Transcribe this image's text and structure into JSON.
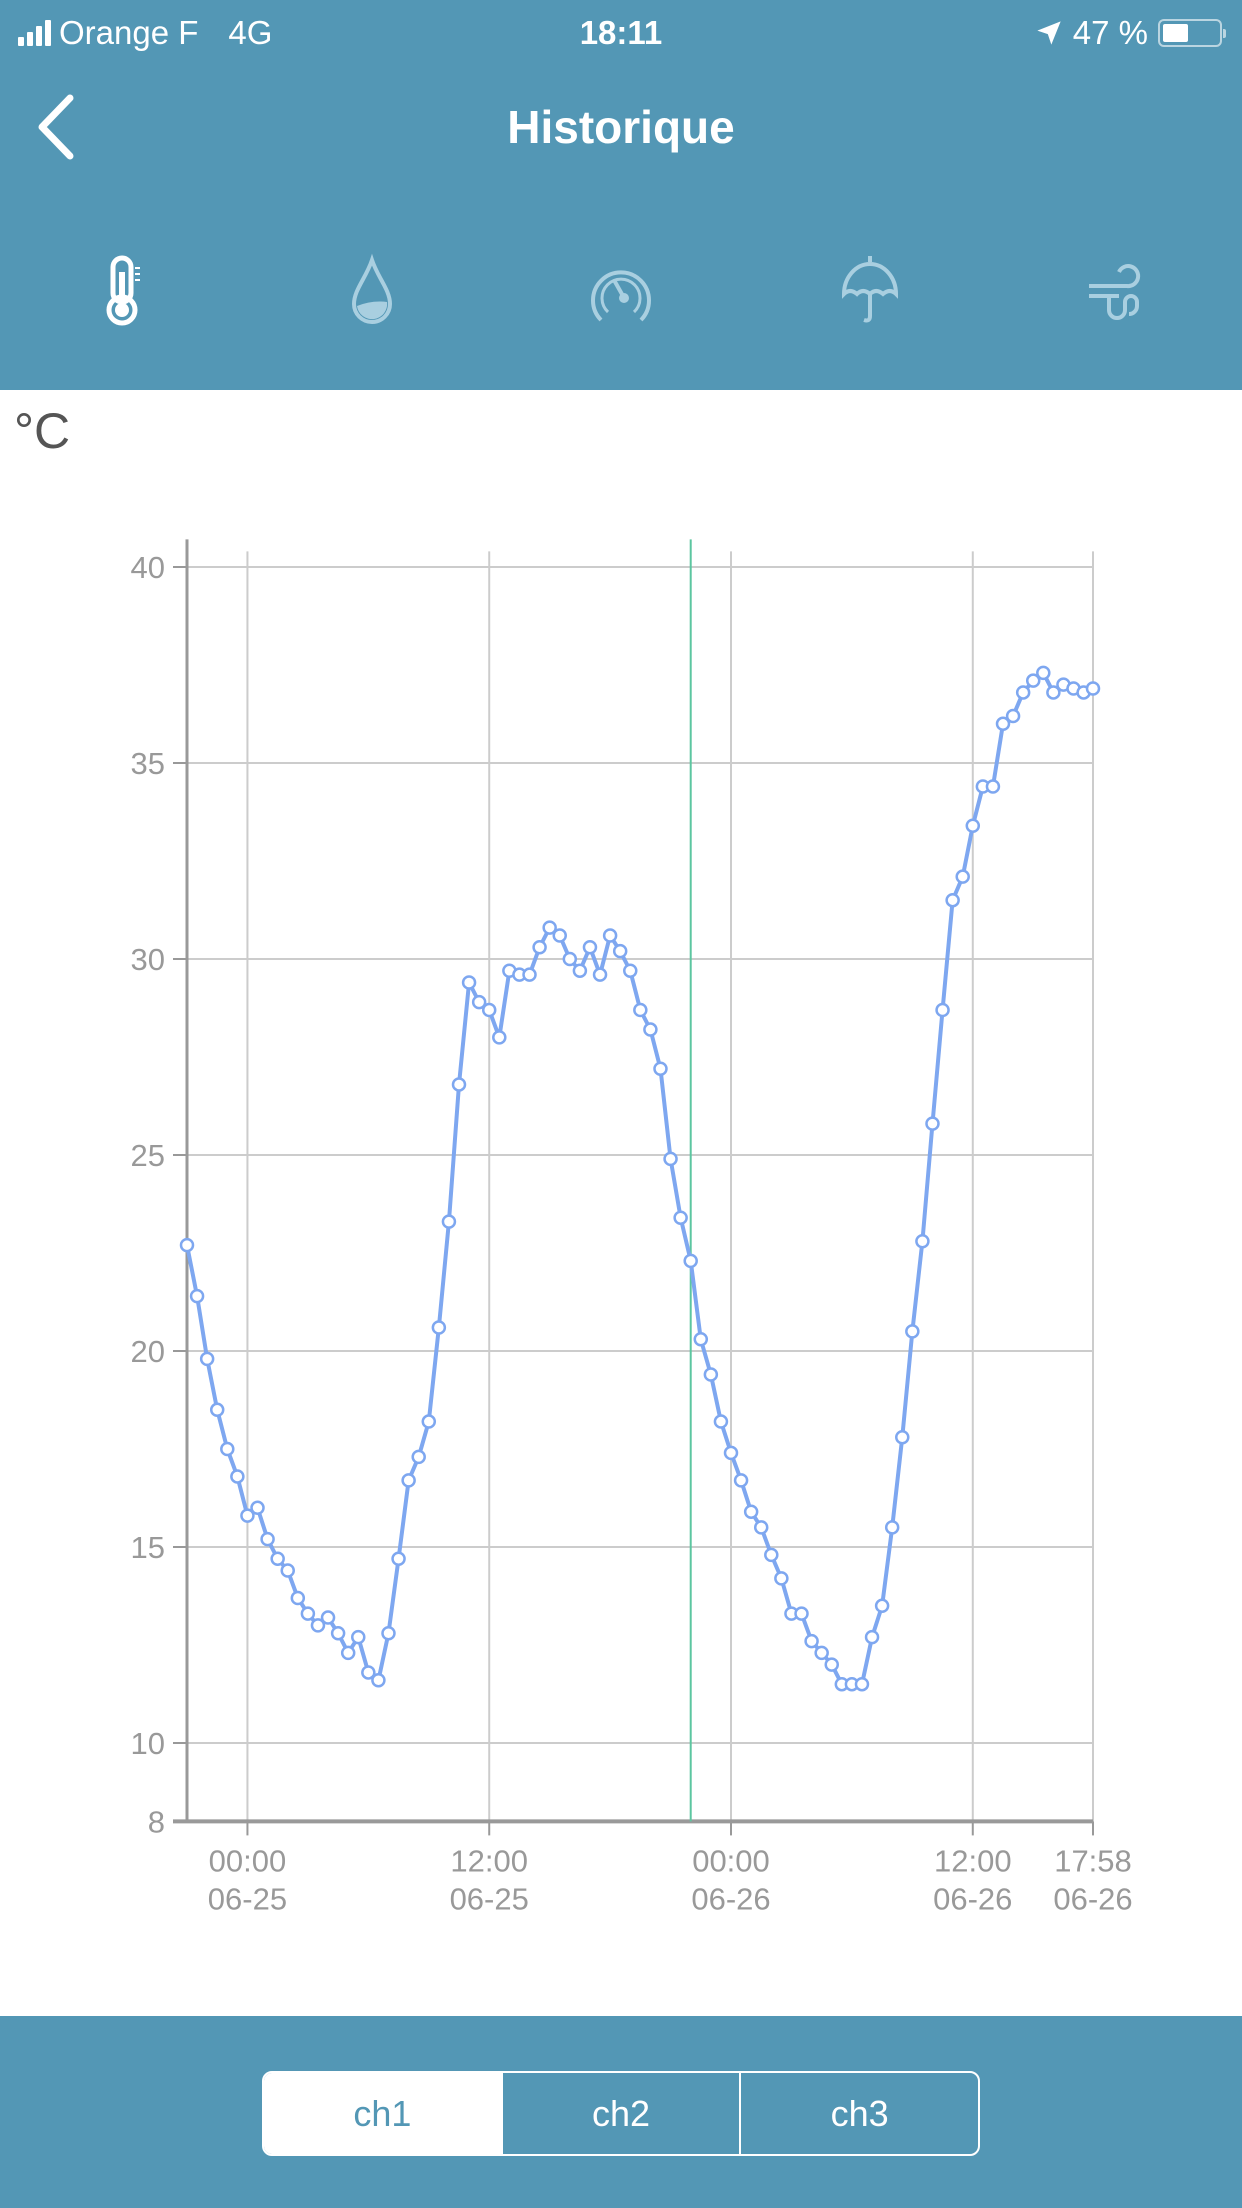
{
  "status_bar": {
    "carrier": "Orange F",
    "network": "4G",
    "time": "18:11",
    "battery": "47 %",
    "battery_level": 0.47
  },
  "header": {
    "title": "Historique"
  },
  "sensor_tabs": [
    {
      "icon": "thermometer-icon",
      "active": true
    },
    {
      "icon": "humidity-drop-icon",
      "active": false
    },
    {
      "icon": "pressure-gauge-icon",
      "active": false
    },
    {
      "icon": "rain-umbrella-icon",
      "active": false
    },
    {
      "icon": "wind-icon",
      "active": false
    }
  ],
  "unit_label": "°C",
  "colors": {
    "header": "#5397b5",
    "line": "#7ea7f0",
    "cursor": "#5cc6a0",
    "grid": "#cccccc",
    "axis": "#999999"
  },
  "chart_data": {
    "type": "line",
    "ylim": [
      8,
      40
    ],
    "y_ticks": [
      "40",
      "35",
      "30",
      "25",
      "20",
      "15",
      "10",
      "8"
    ],
    "x_range": [
      "06-24 21:00",
      "06-26 17:58"
    ],
    "x_ticks": [
      {
        "time": "00:00",
        "date": "06-25"
      },
      {
        "time": "12:00",
        "date": "06-25"
      },
      {
        "time": "00:00",
        "date": "06-26"
      },
      {
        "time": "12:00",
        "date": "06-26"
      },
      {
        "time": "17:58",
        "date": "06-26"
      }
    ],
    "cursor_at": "06-25 22:00",
    "grid": true,
    "points": [
      [
        "06-24 21:00",
        22.7
      ],
      [
        "06-24 21:30",
        21.4
      ],
      [
        "06-24 22:00",
        19.8
      ],
      [
        "06-24 22:30",
        18.5
      ],
      [
        "06-24 23:00",
        17.5
      ],
      [
        "06-24 23:30",
        16.8
      ],
      [
        "06-25 00:00",
        15.8
      ],
      [
        "06-25 00:30",
        16.0
      ],
      [
        "06-25 01:00",
        15.2
      ],
      [
        "06-25 01:30",
        14.7
      ],
      [
        "06-25 02:00",
        14.4
      ],
      [
        "06-25 02:30",
        13.7
      ],
      [
        "06-25 03:00",
        13.3
      ],
      [
        "06-25 03:30",
        13.0
      ],
      [
        "06-25 04:00",
        13.2
      ],
      [
        "06-25 04:30",
        12.8
      ],
      [
        "06-25 05:00",
        12.3
      ],
      [
        "06-25 05:30",
        12.7
      ],
      [
        "06-25 06:00",
        11.8
      ],
      [
        "06-25 06:30",
        11.6
      ],
      [
        "06-25 07:00",
        12.8
      ],
      [
        "06-25 07:30",
        14.7
      ],
      [
        "06-25 08:00",
        16.7
      ],
      [
        "06-25 08:30",
        17.3
      ],
      [
        "06-25 09:00",
        18.2
      ],
      [
        "06-25 09:30",
        20.6
      ],
      [
        "06-25 10:00",
        23.3
      ],
      [
        "06-25 10:30",
        26.8
      ],
      [
        "06-25 11:00",
        29.4
      ],
      [
        "06-25 11:30",
        28.9
      ],
      [
        "06-25 12:00",
        28.7
      ],
      [
        "06-25 12:30",
        28.0
      ],
      [
        "06-25 13:00",
        29.7
      ],
      [
        "06-25 13:30",
        29.6
      ],
      [
        "06-25 14:00",
        29.6
      ],
      [
        "06-25 14:30",
        30.3
      ],
      [
        "06-25 15:00",
        30.8
      ],
      [
        "06-25 15:30",
        30.6
      ],
      [
        "06-25 16:00",
        30.0
      ],
      [
        "06-25 16:30",
        29.7
      ],
      [
        "06-25 17:00",
        30.3
      ],
      [
        "06-25 17:30",
        29.6
      ],
      [
        "06-25 18:00",
        30.6
      ],
      [
        "06-25 18:30",
        30.2
      ],
      [
        "06-25 19:00",
        29.7
      ],
      [
        "06-25 19:30",
        28.7
      ],
      [
        "06-25 20:00",
        28.2
      ],
      [
        "06-25 20:30",
        27.2
      ],
      [
        "06-25 21:00",
        24.9
      ],
      [
        "06-25 21:30",
        23.4
      ],
      [
        "06-25 22:00",
        22.3
      ],
      [
        "06-25 22:30",
        20.3
      ],
      [
        "06-25 23:00",
        19.4
      ],
      [
        "06-25 23:30",
        18.2
      ],
      [
        "06-26 00:00",
        17.4
      ],
      [
        "06-26 00:30",
        16.7
      ],
      [
        "06-26 01:00",
        15.9
      ],
      [
        "06-26 01:30",
        15.5
      ],
      [
        "06-26 02:00",
        14.8
      ],
      [
        "06-26 02:30",
        14.2
      ],
      [
        "06-26 03:00",
        13.3
      ],
      [
        "06-26 03:30",
        13.3
      ],
      [
        "06-26 04:00",
        12.6
      ],
      [
        "06-26 04:30",
        12.3
      ],
      [
        "06-26 05:00",
        12.0
      ],
      [
        "06-26 05:30",
        11.5
      ],
      [
        "06-26 06:00",
        11.5
      ],
      [
        "06-26 06:30",
        11.5
      ],
      [
        "06-26 07:00",
        12.7
      ],
      [
        "06-26 07:30",
        13.5
      ],
      [
        "06-26 08:00",
        15.5
      ],
      [
        "06-26 08:30",
        17.8
      ],
      [
        "06-26 09:00",
        20.5
      ],
      [
        "06-26 09:30",
        22.8
      ],
      [
        "06-26 10:00",
        25.8
      ],
      [
        "06-26 10:30",
        28.7
      ],
      [
        "06-26 11:00",
        31.5
      ],
      [
        "06-26 11:30",
        32.1
      ],
      [
        "06-26 12:00",
        33.4
      ],
      [
        "06-26 12:30",
        34.4
      ],
      [
        "06-26 13:00",
        34.4
      ],
      [
        "06-26 13:30",
        36.0
      ],
      [
        "06-26 14:00",
        36.2
      ],
      [
        "06-26 14:30",
        36.8
      ],
      [
        "06-26 15:00",
        37.1
      ],
      [
        "06-26 15:30",
        37.3
      ],
      [
        "06-26 16:00",
        36.8
      ],
      [
        "06-26 16:30",
        37.0
      ],
      [
        "06-26 17:00",
        36.9
      ],
      [
        "06-26 17:30",
        36.8
      ],
      [
        "06-26 17:58",
        36.9
      ]
    ]
  },
  "channels": [
    {
      "label": "ch1",
      "active": true
    },
    {
      "label": "ch2",
      "active": false
    },
    {
      "label": "ch3",
      "active": false
    }
  ]
}
